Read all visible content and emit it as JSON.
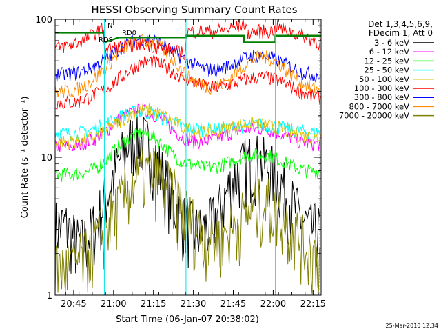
{
  "chart_data": {
    "type": "line",
    "title": "HESSI Observing Summary Count Rates",
    "xlabel": "Start Time (06-Jan-07 20:38:02)",
    "ylabel": "Count Rate (s⁻¹ detector⁻¹)",
    "yscale": "log",
    "ylim": [
      1,
      100
    ],
    "xlim_minutes": [
      0,
      100
    ],
    "x_ticks": [
      {
        "label": "20:45",
        "min": 6.97
      },
      {
        "label": "21:00",
        "min": 21.97
      },
      {
        "label": "21:15",
        "min": 36.97
      },
      {
        "label": "21:30",
        "min": 51.97
      },
      {
        "label": "21:45",
        "min": 66.97
      },
      {
        "label": "22:00",
        "min": 81.97
      },
      {
        "label": "22:15",
        "min": 96.97
      }
    ],
    "y_ticks": [
      {
        "label": "1",
        "value": 1
      },
      {
        "label": "10",
        "value": 10
      },
      {
        "label": "100",
        "value": 100
      }
    ],
    "legend": {
      "header": [
        "Det 1,3,4,5,6,9,",
        "FDecim 1, Att 0"
      ],
      "placement": "right"
    },
    "annotations": [
      {
        "text": "RD0",
        "color": "#008000"
      },
      {
        "text": "RDS",
        "color": "#008000"
      },
      {
        "text": "N",
        "color": "#00cccc"
      }
    ],
    "footer": "25-Mar-2010 12:34",
    "cyan_markers_min": [
      0,
      18.5,
      49.2,
      82.8,
      99.5
    ],
    "series": [
      {
        "name": "3 - 6 keV",
        "color": "#000000",
        "x": [
          0,
          4,
          8,
          10,
          12,
          14,
          16,
          18,
          20,
          22,
          24,
          26,
          28,
          30,
          32,
          34,
          36,
          38,
          40,
          42,
          44,
          46,
          48,
          50,
          52,
          54,
          56,
          58,
          60,
          62,
          64,
          66,
          68,
          70,
          72,
          74,
          76,
          78,
          80,
          82,
          84,
          86,
          88,
          90,
          92,
          94,
          96,
          98,
          100
        ],
        "y": [
          3.2,
          3.2,
          2.4,
          2.4,
          2.6,
          3.0,
          3.6,
          4.5,
          5.8,
          7.4,
          9.2,
          11,
          13,
          14,
          14,
          13,
          11.5,
          9.5,
          7.8,
          6.3,
          5.0,
          4.2,
          3.6,
          3.2,
          3.0,
          2.9,
          3.0,
          3.2,
          3.6,
          4.3,
          5.2,
          6.3,
          7.4,
          8.4,
          9.2,
          9.6,
          9.6,
          9.2,
          8.6,
          7.8,
          7.0,
          6.0,
          5.0,
          4.3,
          3.7,
          3.3,
          3.0,
          3.0,
          3.0
        ]
      },
      {
        "name": "6 - 12 keV",
        "color": "#ff00ff",
        "x": [
          0,
          4,
          8,
          12,
          16,
          20,
          24,
          28,
          32,
          36,
          40,
          44,
          48,
          50,
          52,
          56,
          60,
          64,
          68,
          72,
          76,
          78,
          80,
          84,
          88,
          92,
          96,
          100
        ],
        "y": [
          12,
          12,
          12,
          13,
          14,
          16,
          19,
          21,
          22,
          21,
          19,
          16,
          14,
          13.5,
          13,
          13,
          13.5,
          14.5,
          15.5,
          16,
          16,
          16.2,
          16,
          15,
          14,
          13,
          12.5,
          12.5
        ]
      },
      {
        "name": "12 - 25 keV",
        "color": "#00ff00",
        "x": [
          0,
          4,
          8,
          12,
          16,
          20,
          24,
          28,
          32,
          36,
          40,
          44,
          48,
          52,
          56,
          60,
          64,
          68,
          72,
          76,
          80,
          84,
          88,
          92,
          96,
          100
        ],
        "y": [
          7.5,
          7.5,
          7.6,
          7.8,
          8.5,
          10,
          12,
          14,
          15,
          14.5,
          12.5,
          10.5,
          9.3,
          8.8,
          8.5,
          8.5,
          9.0,
          9.6,
          10.2,
          10.5,
          10.3,
          9.6,
          8.9,
          8.2,
          7.9,
          7.9
        ]
      },
      {
        "name": "25 - 50 keV",
        "color": "#00ffff",
        "x": [
          0,
          4,
          8,
          12,
          16,
          20,
          24,
          28,
          32,
          36,
          40,
          44,
          48,
          52,
          56,
          60,
          64,
          68,
          72,
          76,
          80,
          84,
          88,
          92,
          96,
          100
        ],
        "y": [
          15,
          15,
          15,
          15.5,
          16.5,
          18,
          19.5,
          21,
          21.5,
          21,
          19.5,
          18,
          16.8,
          16.2,
          16,
          16,
          16.2,
          16.6,
          17,
          17.2,
          17,
          16.5,
          16,
          15.5,
          15.3,
          15.2
        ]
      },
      {
        "name": "50 - 100 keV",
        "color": "#e0c000",
        "x": [
          0,
          4,
          8,
          12,
          16,
          20,
          24,
          28,
          32,
          36,
          40,
          44,
          48,
          52,
          56,
          60,
          64,
          68,
          72,
          76,
          80,
          84,
          88,
          92,
          96,
          100
        ],
        "y": [
          13,
          13,
          13,
          13.5,
          14.5,
          16,
          18,
          20.5,
          22,
          22,
          20.5,
          18.5,
          16.5,
          15.5,
          15.2,
          15.5,
          16,
          17,
          17.5,
          17.5,
          17,
          16.3,
          15.3,
          14.5,
          14,
          14
        ]
      },
      {
        "name": "100 - 300 keV",
        "color": "#ff0000",
        "x": [
          0,
          4,
          8,
          12,
          16,
          20,
          24,
          28,
          32,
          36,
          40,
          44,
          48,
          52,
          56,
          60,
          64,
          68,
          72,
          76,
          80,
          84,
          88,
          92,
          96,
          100
        ],
        "y": [
          25,
          25,
          25,
          27,
          29,
          32,
          37,
          43,
          48,
          50,
          47,
          42,
          38,
          35,
          33,
          32,
          33,
          35,
          37,
          38,
          38,
          36,
          33,
          30,
          28,
          27
        ]
      },
      {
        "name": "300 - 800 keV",
        "color": "#0000ff",
        "x": [
          0,
          4,
          8,
          12,
          16,
          20,
          24,
          28,
          32,
          36,
          40,
          44,
          48,
          52,
          56,
          60,
          64,
          68,
          72,
          76,
          80,
          84,
          88,
          92,
          96,
          100
        ],
        "y": [
          40,
          40,
          41,
          43,
          47,
          53,
          61,
          68,
          72,
          72,
          67,
          59,
          52,
          47,
          44,
          43,
          45,
          49,
          53,
          55,
          54,
          50,
          46,
          42,
          40,
          39
        ]
      },
      {
        "name": "800 - 7000 keV",
        "color": "#ff8c00",
        "x": [
          0,
          4,
          8,
          12,
          16,
          20,
          24,
          28,
          32,
          36,
          40,
          44,
          48,
          52,
          56,
          60,
          64,
          68,
          72,
          76,
          80,
          84,
          88,
          92,
          96,
          100
        ],
        "y": [
          30,
          30,
          31,
          34,
          39,
          47,
          57,
          66,
          70,
          69,
          62,
          52,
          42,
          36,
          33,
          32,
          35,
          41,
          48,
          53,
          53,
          48,
          41,
          36,
          32,
          31
        ]
      },
      {
        "name": "7000 - 20000 keV",
        "color": "#808000",
        "x": [
          0,
          4,
          8,
          12,
          16,
          20,
          24,
          28,
          32,
          36,
          40,
          44,
          48,
          52,
          56,
          60,
          64,
          68,
          72,
          76,
          80,
          84,
          88,
          92,
          96,
          100
        ],
        "y": [
          1.6,
          1.6,
          1.7,
          2.0,
          2.6,
          3.4,
          4.6,
          6.2,
          7.5,
          7.8,
          7.0,
          5.6,
          4.3,
          3.3,
          2.8,
          2.6,
          2.8,
          3.3,
          4.0,
          4.5,
          4.6,
          4.1,
          3.3,
          2.6,
          2.1,
          1.9
        ]
      },
      {
        "name": "",
        "color": "#ff0000",
        "x": [
          0,
          4,
          8,
          12,
          16,
          18.4,
          18.6,
          22,
          26,
          30,
          34,
          38,
          42,
          46,
          49.1,
          49.3,
          52,
          56,
          60,
          64,
          68,
          70,
          71,
          72,
          76,
          80,
          82.7,
          82.9,
          86,
          90,
          94,
          98,
          100
        ],
        "y": [
          62,
          64,
          68,
          73,
          82,
          86,
          60,
          62,
          64,
          66,
          66,
          64,
          60,
          58,
          57,
          82,
          82,
          82,
          82,
          84,
          88,
          92,
          95,
          80,
          82,
          82,
          84,
          90,
          84,
          80,
          75,
          70,
          66
        ]
      },
      {
        "name": "",
        "color": "#008000",
        "x": [
          0,
          18.5,
          18.5,
          24,
          30,
          36,
          42,
          49.2,
          49.2,
          60,
          70,
          71,
          71,
          82.8,
          82.8,
          90,
          100
        ],
        "y": [
          80,
          80,
          68,
          74,
          74,
          74,
          74,
          74,
          76,
          76,
          76,
          76,
          68,
          68,
          76,
          76,
          76
        ]
      }
    ]
  }
}
